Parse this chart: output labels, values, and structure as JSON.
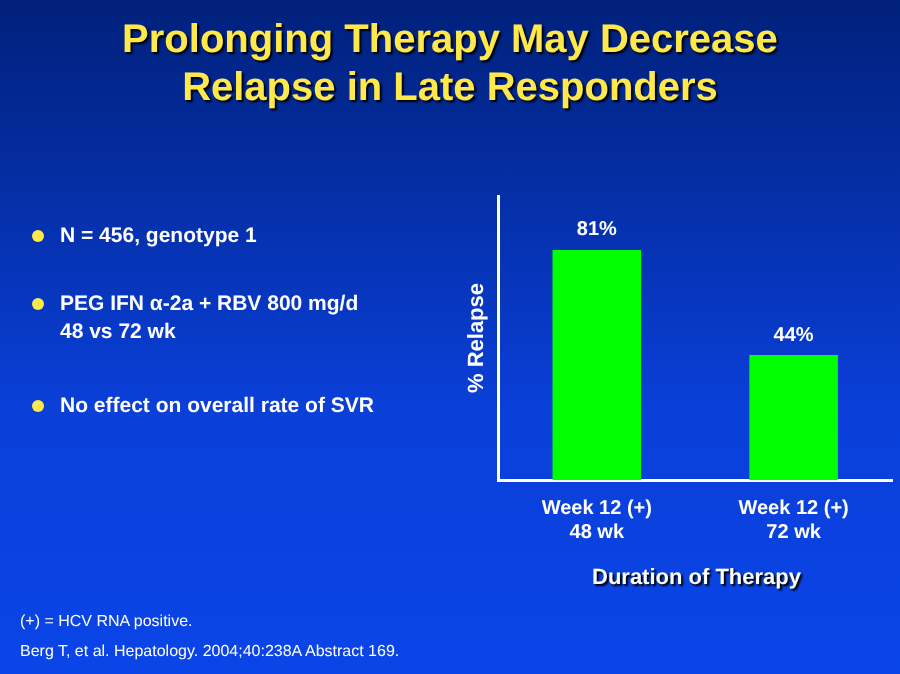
{
  "chart_data": {
    "type": "bar",
    "title": "Prolonging Therapy May Decrease\nRelapse in Late Responders",
    "categories": [
      "Week 12 (+)\n48 wk",
      "Week 12 (+)\n72 wk"
    ],
    "values": [
      81,
      44
    ],
    "color": "#00ff00",
    "value_labels": [
      "81%",
      "44%"
    ],
    "ylabel": "% Relapse",
    "xlabel": "Duration of Therapy",
    "ylim": [
      0,
      100
    ],
    "tick_labels": "x",
    "grid": false,
    "legend": false,
    "annotations": [
      "N = 456, genotype 1",
      "PEG IFN α-2a + RBV 800 mg/d\n48 vs 72 wk",
      "No effect on overall rate of SVR",
      "(+) = HCV RNA positive.",
      "Berg T, et al. Hepatology. 2004;40:238A Abstract 169."
    ]
  }
}
